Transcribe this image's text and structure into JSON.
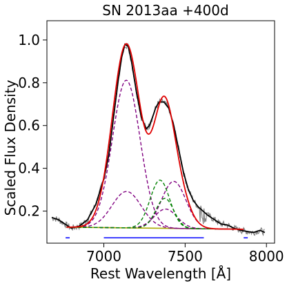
{
  "chart_data": {
    "type": "line",
    "title": "SN 2013aa  +400d",
    "xlabel": "Rest Wavelength [Å]",
    "ylabel": "Scaled Flux Density",
    "xlim": [
      6650,
      8050
    ],
    "ylim": [
      0.05,
      1.09
    ],
    "xticks": [
      7000,
      7500,
      8000
    ],
    "yticks": [
      0.2,
      0.4,
      0.6,
      0.8,
      1.0
    ],
    "grid": false,
    "legend": "none",
    "colors": {
      "observed": "#808080",
      "smoothed": "#000000",
      "fit": "#e00000",
      "components_outer": "#800080",
      "components_inner": "#008000",
      "continuum": "#aaaa00",
      "fit_region": "#0000ff"
    },
    "continuum": {
      "x": [
        6770,
        7860
      ],
      "y": [
        0.125,
        0.115
      ]
    },
    "smoothed_spectrum": {
      "x": [
        6680,
        6720,
        6760,
        6800,
        6850,
        6900,
        6950,
        7000,
        7030,
        7060,
        7090,
        7110,
        7130,
        7150,
        7170,
        7200,
        7230,
        7260,
        7280,
        7300,
        7320,
        7340,
        7370,
        7400,
        7430,
        7460,
        7490,
        7520,
        7550,
        7580,
        7610,
        7640,
        7680,
        7720,
        7760,
        7800,
        7840,
        7880,
        7920,
        7960,
        7990
      ],
      "y": [
        0.17,
        0.16,
        0.14,
        0.12,
        0.13,
        0.16,
        0.23,
        0.35,
        0.46,
        0.64,
        0.82,
        0.92,
        0.98,
        0.97,
        0.9,
        0.76,
        0.64,
        0.585,
        0.6,
        0.64,
        0.685,
        0.71,
        0.71,
        0.68,
        0.6,
        0.49,
        0.38,
        0.3,
        0.25,
        0.22,
        0.2,
        0.18,
        0.16,
        0.14,
        0.135,
        0.12,
        0.11,
        0.105,
        0.1,
        0.11,
        0.1
      ]
    },
    "fit_components": [
      {
        "kind": "outer",
        "center": 7138,
        "sigma": 85,
        "amplitude": 0.69
      },
      {
        "kind": "outer",
        "center": 7140,
        "sigma": 90,
        "amplitude": 0.17
      },
      {
        "kind": "outer",
        "center": 7430,
        "sigma": 75,
        "amplitude": 0.22
      },
      {
        "kind": "outer",
        "center": 7380,
        "sigma": 70,
        "amplitude": 0.09
      },
      {
        "kind": "inner",
        "center": 7345,
        "sigma": 60,
        "amplitude": 0.225
      },
      {
        "kind": "inner",
        "center": 7375,
        "sigma": 55,
        "amplitude": 0.14
      }
    ],
    "fit_regions": [
      {
        "x": [
          6765,
          6790
        ],
        "y": 0.075
      },
      {
        "x": [
          7000,
          7615
        ],
        "y": 0.075
      },
      {
        "x": [
          7860,
          7885
        ],
        "y": 0.075
      }
    ]
  }
}
